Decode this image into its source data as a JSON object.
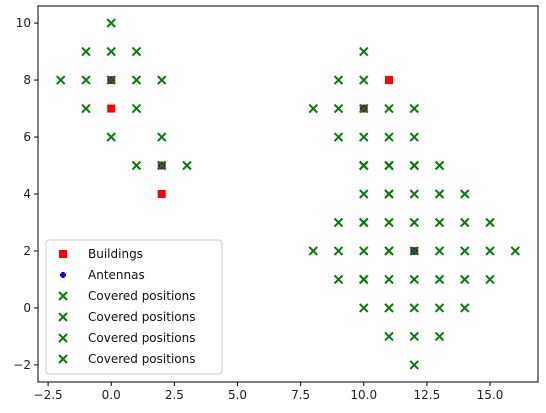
{
  "chart_data": {
    "type": "scatter",
    "title": "",
    "xlabel": "",
    "ylabel": "",
    "xlim": [
      -2.9,
      16.9
    ],
    "ylim": [
      -2.6,
      10.6
    ],
    "xticks": [
      -2.5,
      0.0,
      2.5,
      5.0,
      7.5,
      10.0,
      12.5,
      15.0
    ],
    "xtick_labels": [
      "−2.5",
      "0.0",
      "2.5",
      "5.0",
      "7.5",
      "10.0",
      "12.5",
      "15.0"
    ],
    "yticks": [
      -2,
      0,
      2,
      4,
      6,
      8,
      10
    ],
    "ytick_labels": [
      "−2",
      "0",
      "2",
      "4",
      "6",
      "8",
      "10"
    ],
    "grid": false,
    "legend_position": "lower-left",
    "series": [
      {
        "name": "Buildings",
        "marker": "square",
        "color": "#ff0000",
        "points": [
          [
            0,
            8
          ],
          [
            0,
            7
          ],
          [
            2,
            5
          ],
          [
            2,
            4
          ],
          [
            10,
            7
          ],
          [
            11,
            8
          ],
          [
            12,
            2
          ]
        ]
      },
      {
        "name": "Antennas",
        "marker": "plus",
        "color": "#0000ff",
        "points": [
          [
            0,
            8
          ],
          [
            2,
            5
          ],
          [
            10,
            7
          ],
          [
            12,
            2
          ]
        ]
      },
      {
        "name": "Covered positions",
        "marker": "x",
        "color": "#008000",
        "points": [
          [
            0,
            10
          ],
          [
            -1,
            9
          ],
          [
            0,
            9
          ],
          [
            1,
            9
          ],
          [
            -2,
            8
          ],
          [
            -1,
            8
          ],
          [
            0,
            8
          ],
          [
            1,
            8
          ],
          [
            2,
            8
          ],
          [
            -1,
            7
          ],
          [
            1,
            7
          ],
          [
            0,
            6
          ]
        ]
      },
      {
        "name": "Covered positions",
        "marker": "x",
        "color": "#008000",
        "points": [
          [
            2,
            6
          ],
          [
            1,
            5
          ],
          [
            2,
            5
          ],
          [
            3,
            5
          ]
        ]
      },
      {
        "name": "Covered positions",
        "marker": "x",
        "color": "#008000",
        "points": [
          [
            10,
            9
          ],
          [
            9,
            8
          ],
          [
            10,
            8
          ],
          [
            8,
            7
          ],
          [
            9,
            7
          ],
          [
            10,
            7
          ],
          [
            11,
            7
          ],
          [
            12,
            7
          ],
          [
            9,
            6
          ],
          [
            10,
            6
          ],
          [
            11,
            6
          ],
          [
            12,
            6
          ],
          [
            10,
            5
          ],
          [
            11,
            5
          ],
          [
            12,
            5
          ],
          [
            11,
            4
          ],
          [
            10,
            3
          ],
          [
            11,
            2
          ],
          [
            10,
            1
          ],
          [
            11,
            0
          ]
        ]
      },
      {
        "name": "Covered positions",
        "marker": "x",
        "color": "#008000",
        "points": [
          [
            10,
            5
          ],
          [
            11,
            5
          ],
          [
            12,
            5
          ],
          [
            13,
            5
          ],
          [
            10,
            4
          ],
          [
            11,
            4
          ],
          [
            12,
            4
          ],
          [
            13,
            4
          ],
          [
            14,
            4
          ],
          [
            9,
            3
          ],
          [
            10,
            3
          ],
          [
            11,
            3
          ],
          [
            12,
            3
          ],
          [
            13,
            3
          ],
          [
            14,
            3
          ],
          [
            15,
            3
          ],
          [
            8,
            2
          ],
          [
            9,
            2
          ],
          [
            10,
            2
          ],
          [
            11,
            2
          ],
          [
            12,
            2
          ],
          [
            13,
            2
          ],
          [
            14,
            2
          ],
          [
            15,
            2
          ],
          [
            16,
            2
          ],
          [
            9,
            1
          ],
          [
            10,
            1
          ],
          [
            11,
            1
          ],
          [
            12,
            1
          ],
          [
            13,
            1
          ],
          [
            14,
            1
          ],
          [
            15,
            1
          ],
          [
            10,
            0
          ],
          [
            11,
            0
          ],
          [
            12,
            0
          ],
          [
            13,
            0
          ],
          [
            14,
            0
          ],
          [
            11,
            -1
          ],
          [
            12,
            -1
          ],
          [
            13,
            -1
          ],
          [
            12,
            -2
          ]
        ]
      }
    ]
  }
}
